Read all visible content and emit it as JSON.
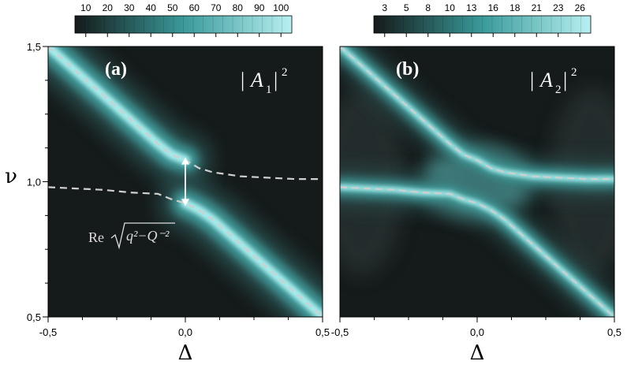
{
  "chart_data": [
    {
      "type": "heatmap",
      "panel_label": "(a)",
      "quantity": "|A1|²",
      "quantity_base": "A",
      "quantity_sub": "1",
      "quantity_sup": "2",
      "xlabel": "Δ",
      "ylabel": "ν",
      "xlim": [
        -0.5,
        0.5
      ],
      "ylim": [
        0.5,
        1.5
      ],
      "x_ticks": [
        "-0,5",
        "0,0",
        "0,5"
      ],
      "y_ticks": [
        "0,5",
        "1,0",
        "1,5"
      ],
      "colorbar": {
        "ticks": [
          "10",
          "20",
          "30",
          "40",
          "50",
          "60",
          "70",
          "80",
          "90",
          "100"
        ],
        "min": 0,
        "max": 100
      },
      "annotation": {
        "text_re": "Re",
        "text_formula": "q²−Q⁻²",
        "arrow_x": 0.0,
        "arrow_y_from": 0.91,
        "arrow_y_to": 1.09
      },
      "dashed_curves": [
        {
          "x": [
            -0.5,
            -0.4,
            -0.3,
            -0.2,
            -0.1,
            -0.05,
            0.0,
            0.05,
            0.1,
            0.2,
            0.3,
            0.4,
            0.5
          ],
          "y": [
            1.5,
            1.41,
            1.32,
            1.23,
            1.14,
            1.1,
            1.08,
            1.05,
            1.035,
            1.02,
            1.015,
            1.01,
            1.01
          ]
        },
        {
          "x": [
            -0.5,
            -0.4,
            -0.3,
            -0.2,
            -0.1,
            -0.05,
            0.0,
            0.05,
            0.1,
            0.2,
            0.3,
            0.4,
            0.5
          ],
          "y": [
            0.98,
            0.975,
            0.97,
            0.96,
            0.955,
            0.935,
            0.92,
            0.895,
            0.86,
            0.77,
            0.68,
            0.59,
            0.5
          ]
        }
      ],
      "bright_ridges": [
        {
          "x": [
            -0.5,
            -0.4,
            -0.3,
            -0.2,
            -0.1,
            -0.05,
            0.0
          ],
          "y": [
            1.5,
            1.41,
            1.32,
            1.23,
            1.14,
            1.1,
            1.08
          ]
        },
        {
          "x": [
            0.0,
            0.05,
            0.1,
            0.2,
            0.3,
            0.4,
            0.5
          ],
          "y": [
            0.92,
            0.895,
            0.86,
            0.77,
            0.68,
            0.59,
            0.5
          ]
        }
      ]
    },
    {
      "type": "heatmap",
      "panel_label": "(b)",
      "quantity": "|A2|²",
      "quantity_base": "A",
      "quantity_sub": "2",
      "quantity_sup": "2",
      "xlabel": "Δ",
      "ylabel": "",
      "xlim": [
        -0.5,
        0.5
      ],
      "ylim": [
        0.5,
        1.5
      ],
      "x_ticks": [
        "-0,5",
        "0,0",
        "0,5"
      ],
      "y_ticks": [],
      "colorbar": {
        "ticks": [
          "3",
          "5",
          "8",
          "10",
          "13",
          "16",
          "18",
          "21",
          "23",
          "26"
        ],
        "min": 0,
        "max": 26
      },
      "dashed_curves": [
        {
          "x": [
            -0.5,
            -0.4,
            -0.3,
            -0.2,
            -0.1,
            -0.05,
            0.0,
            0.05,
            0.1,
            0.2,
            0.3,
            0.4,
            0.5
          ],
          "y": [
            1.5,
            1.41,
            1.32,
            1.23,
            1.14,
            1.1,
            1.08,
            1.05,
            1.035,
            1.02,
            1.015,
            1.01,
            1.01
          ]
        },
        {
          "x": [
            -0.5,
            -0.4,
            -0.3,
            -0.2,
            -0.1,
            -0.05,
            0.0,
            0.05,
            0.1,
            0.2,
            0.3,
            0.4,
            0.5
          ],
          "y": [
            0.98,
            0.975,
            0.97,
            0.96,
            0.955,
            0.935,
            0.92,
            0.895,
            0.86,
            0.77,
            0.68,
            0.59,
            0.5
          ]
        }
      ],
      "bright_ridges": [
        {
          "x": [
            -0.5,
            -0.4,
            -0.3,
            -0.2,
            -0.1,
            -0.05,
            0.0,
            0.05,
            0.1,
            0.2,
            0.3,
            0.4,
            0.5
          ],
          "y": [
            1.5,
            1.41,
            1.32,
            1.23,
            1.14,
            1.1,
            1.08,
            1.05,
            1.035,
            1.02,
            1.015,
            1.01,
            1.01
          ]
        },
        {
          "x": [
            -0.5,
            -0.4,
            -0.3,
            -0.2,
            -0.1,
            -0.05,
            0.0,
            0.05,
            0.1,
            0.2,
            0.3,
            0.4,
            0.5
          ],
          "y": [
            0.98,
            0.975,
            0.97,
            0.96,
            0.955,
            0.935,
            0.92,
            0.895,
            0.86,
            0.77,
            0.68,
            0.59,
            0.5
          ]
        }
      ]
    }
  ],
  "colors": {
    "background": "#151a1a",
    "ridge": "#8fe0e0",
    "ridge_core": "#d8ffff",
    "colorbar_low": "#151a1a",
    "colorbar_high": "#b0eef0",
    "dash": "#cfcfcf"
  }
}
